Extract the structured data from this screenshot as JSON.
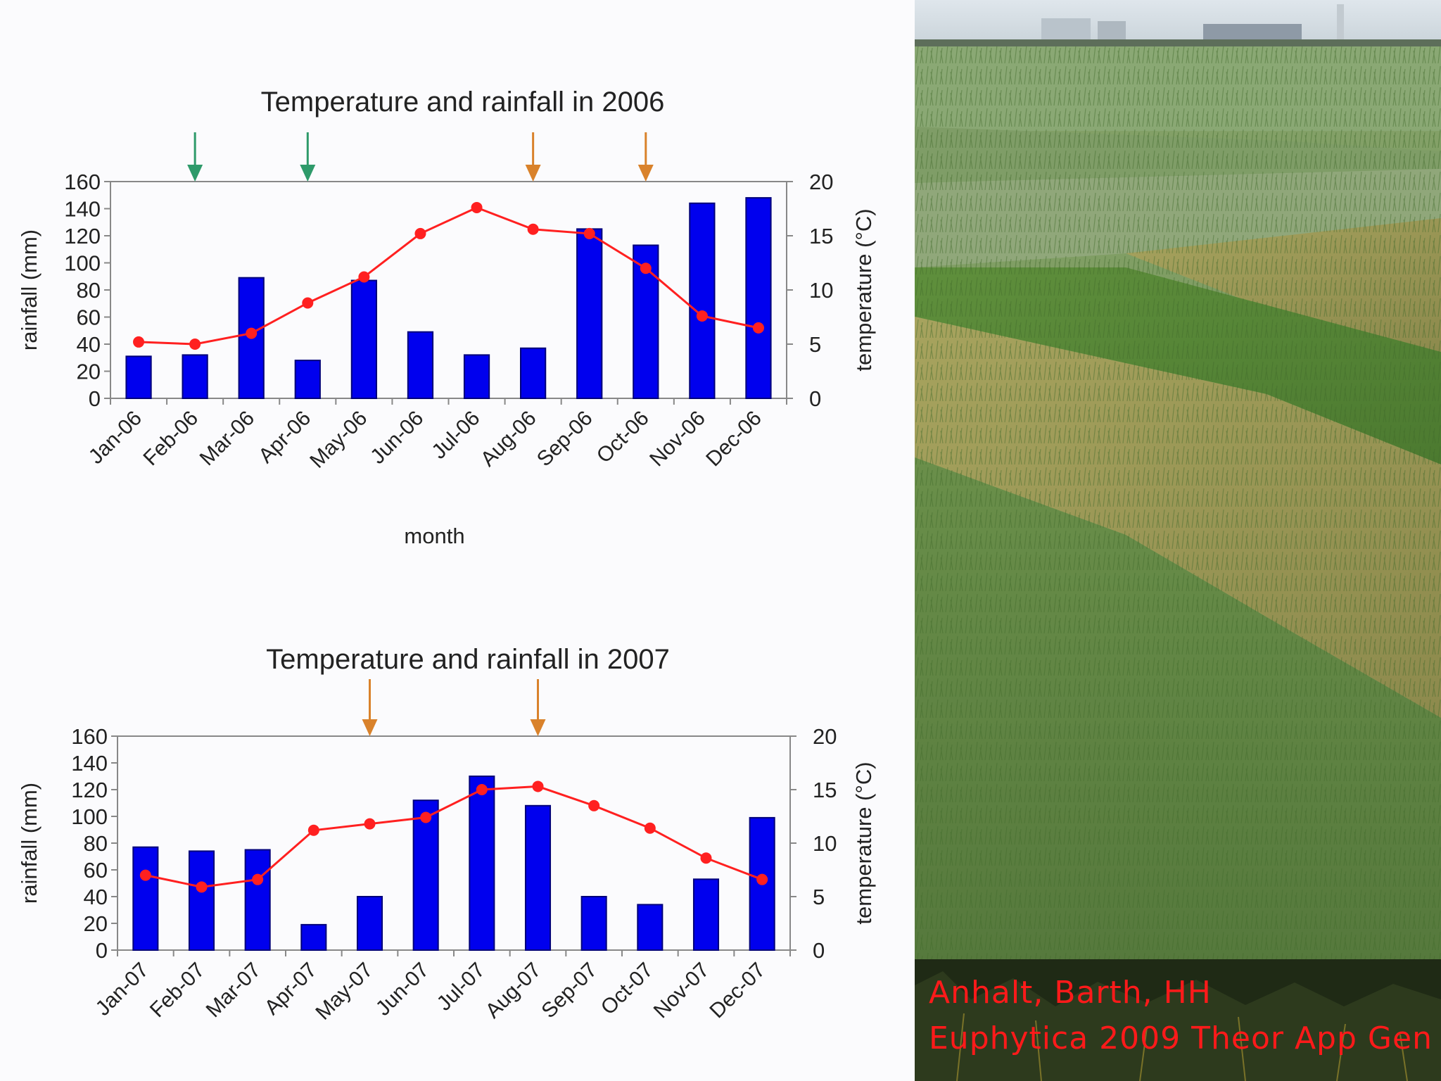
{
  "colors": {
    "bar": "#0000ee",
    "bar_stroke": "#00007a",
    "line": "#ff2020",
    "marker": "#ff2020",
    "green_arrow": "#2e9a6a",
    "orange_arrow": "#d9822b",
    "citation": "#ff1a1a"
  },
  "chart_data": [
    {
      "type": "bar+line",
      "title": "Temperature and rainfall in 2006",
      "xlabel": "month",
      "ylabel": "rainfall (mm)",
      "y2label": "temperature (°C)",
      "ylim": [
        0,
        160
      ],
      "y2lim": [
        0,
        20
      ],
      "yticks": [
        "0",
        "20",
        "40",
        "60",
        "80",
        "100",
        "120",
        "140",
        "160"
      ],
      "y2ticks": [
        "0",
        "5",
        "10",
        "15",
        "20"
      ],
      "categories": [
        "Jan-06",
        "Feb-06",
        "Mar-06",
        "Apr-06",
        "May-06",
        "Jun-06",
        "Jul-06",
        "Aug-06",
        "Sep-06",
        "Oct-06",
        "Nov-06",
        "Dec-06"
      ],
      "series": [
        {
          "name": "rainfall",
          "type": "bar",
          "axis": "left",
          "values": [
            31,
            32,
            89,
            28,
            87,
            49,
            32,
            37,
            125,
            113,
            144,
            148
          ]
        },
        {
          "name": "temperature",
          "type": "line",
          "axis": "right",
          "values": [
            5.2,
            5.0,
            6.0,
            8.8,
            11.2,
            15.2,
            17.6,
            15.6,
            15.2,
            12.0,
            7.6,
            6.5
          ]
        }
      ],
      "arrows": [
        {
          "x": 1.5,
          "color": "green"
        },
        {
          "x": 3.5,
          "color": "green"
        },
        {
          "x": 7.5,
          "color": "orange"
        },
        {
          "x": 9.5,
          "color": "orange"
        }
      ]
    },
    {
      "type": "bar+line",
      "title": "Temperature and rainfall in 2007",
      "xlabel": "month",
      "ylabel": "rainfall (mm)",
      "y2label": "temperature (°C)",
      "ylim": [
        0,
        160
      ],
      "y2lim": [
        0,
        20
      ],
      "yticks": [
        "0",
        "20",
        "40",
        "60",
        "80",
        "100",
        "120",
        "140",
        "160"
      ],
      "y2ticks": [
        "0",
        "5",
        "10",
        "15",
        "20"
      ],
      "categories": [
        "Jan-07",
        "Feb-07",
        "Mar-07",
        "Apr-07",
        "May-07",
        "Jun-07",
        "Jul-07",
        "Aug-07",
        "Sep-07",
        "Oct-07",
        "Nov-07",
        "Dec-07"
      ],
      "series": [
        {
          "name": "rainfall",
          "type": "bar",
          "axis": "left",
          "values": [
            77,
            74,
            75,
            19,
            40,
            112,
            130,
            108,
            40,
            34,
            53,
            99
          ]
        },
        {
          "name": "temperature",
          "type": "line",
          "axis": "right",
          "values": [
            7.0,
            5.9,
            6.6,
            11.2,
            11.8,
            12.4,
            15.0,
            15.3,
            13.5,
            11.4,
            8.6,
            6.6
          ]
        }
      ],
      "arrows": [
        {
          "x": 4.5,
          "color": "orange"
        },
        {
          "x": 7.5,
          "color": "orange"
        }
      ]
    }
  ],
  "photo": {
    "icon": "grass-field-photo-icon"
  },
  "citation": {
    "line1": "Anhalt, Barth, HH",
    "line2": "Euphytica 2009 Theor App Gen"
  }
}
